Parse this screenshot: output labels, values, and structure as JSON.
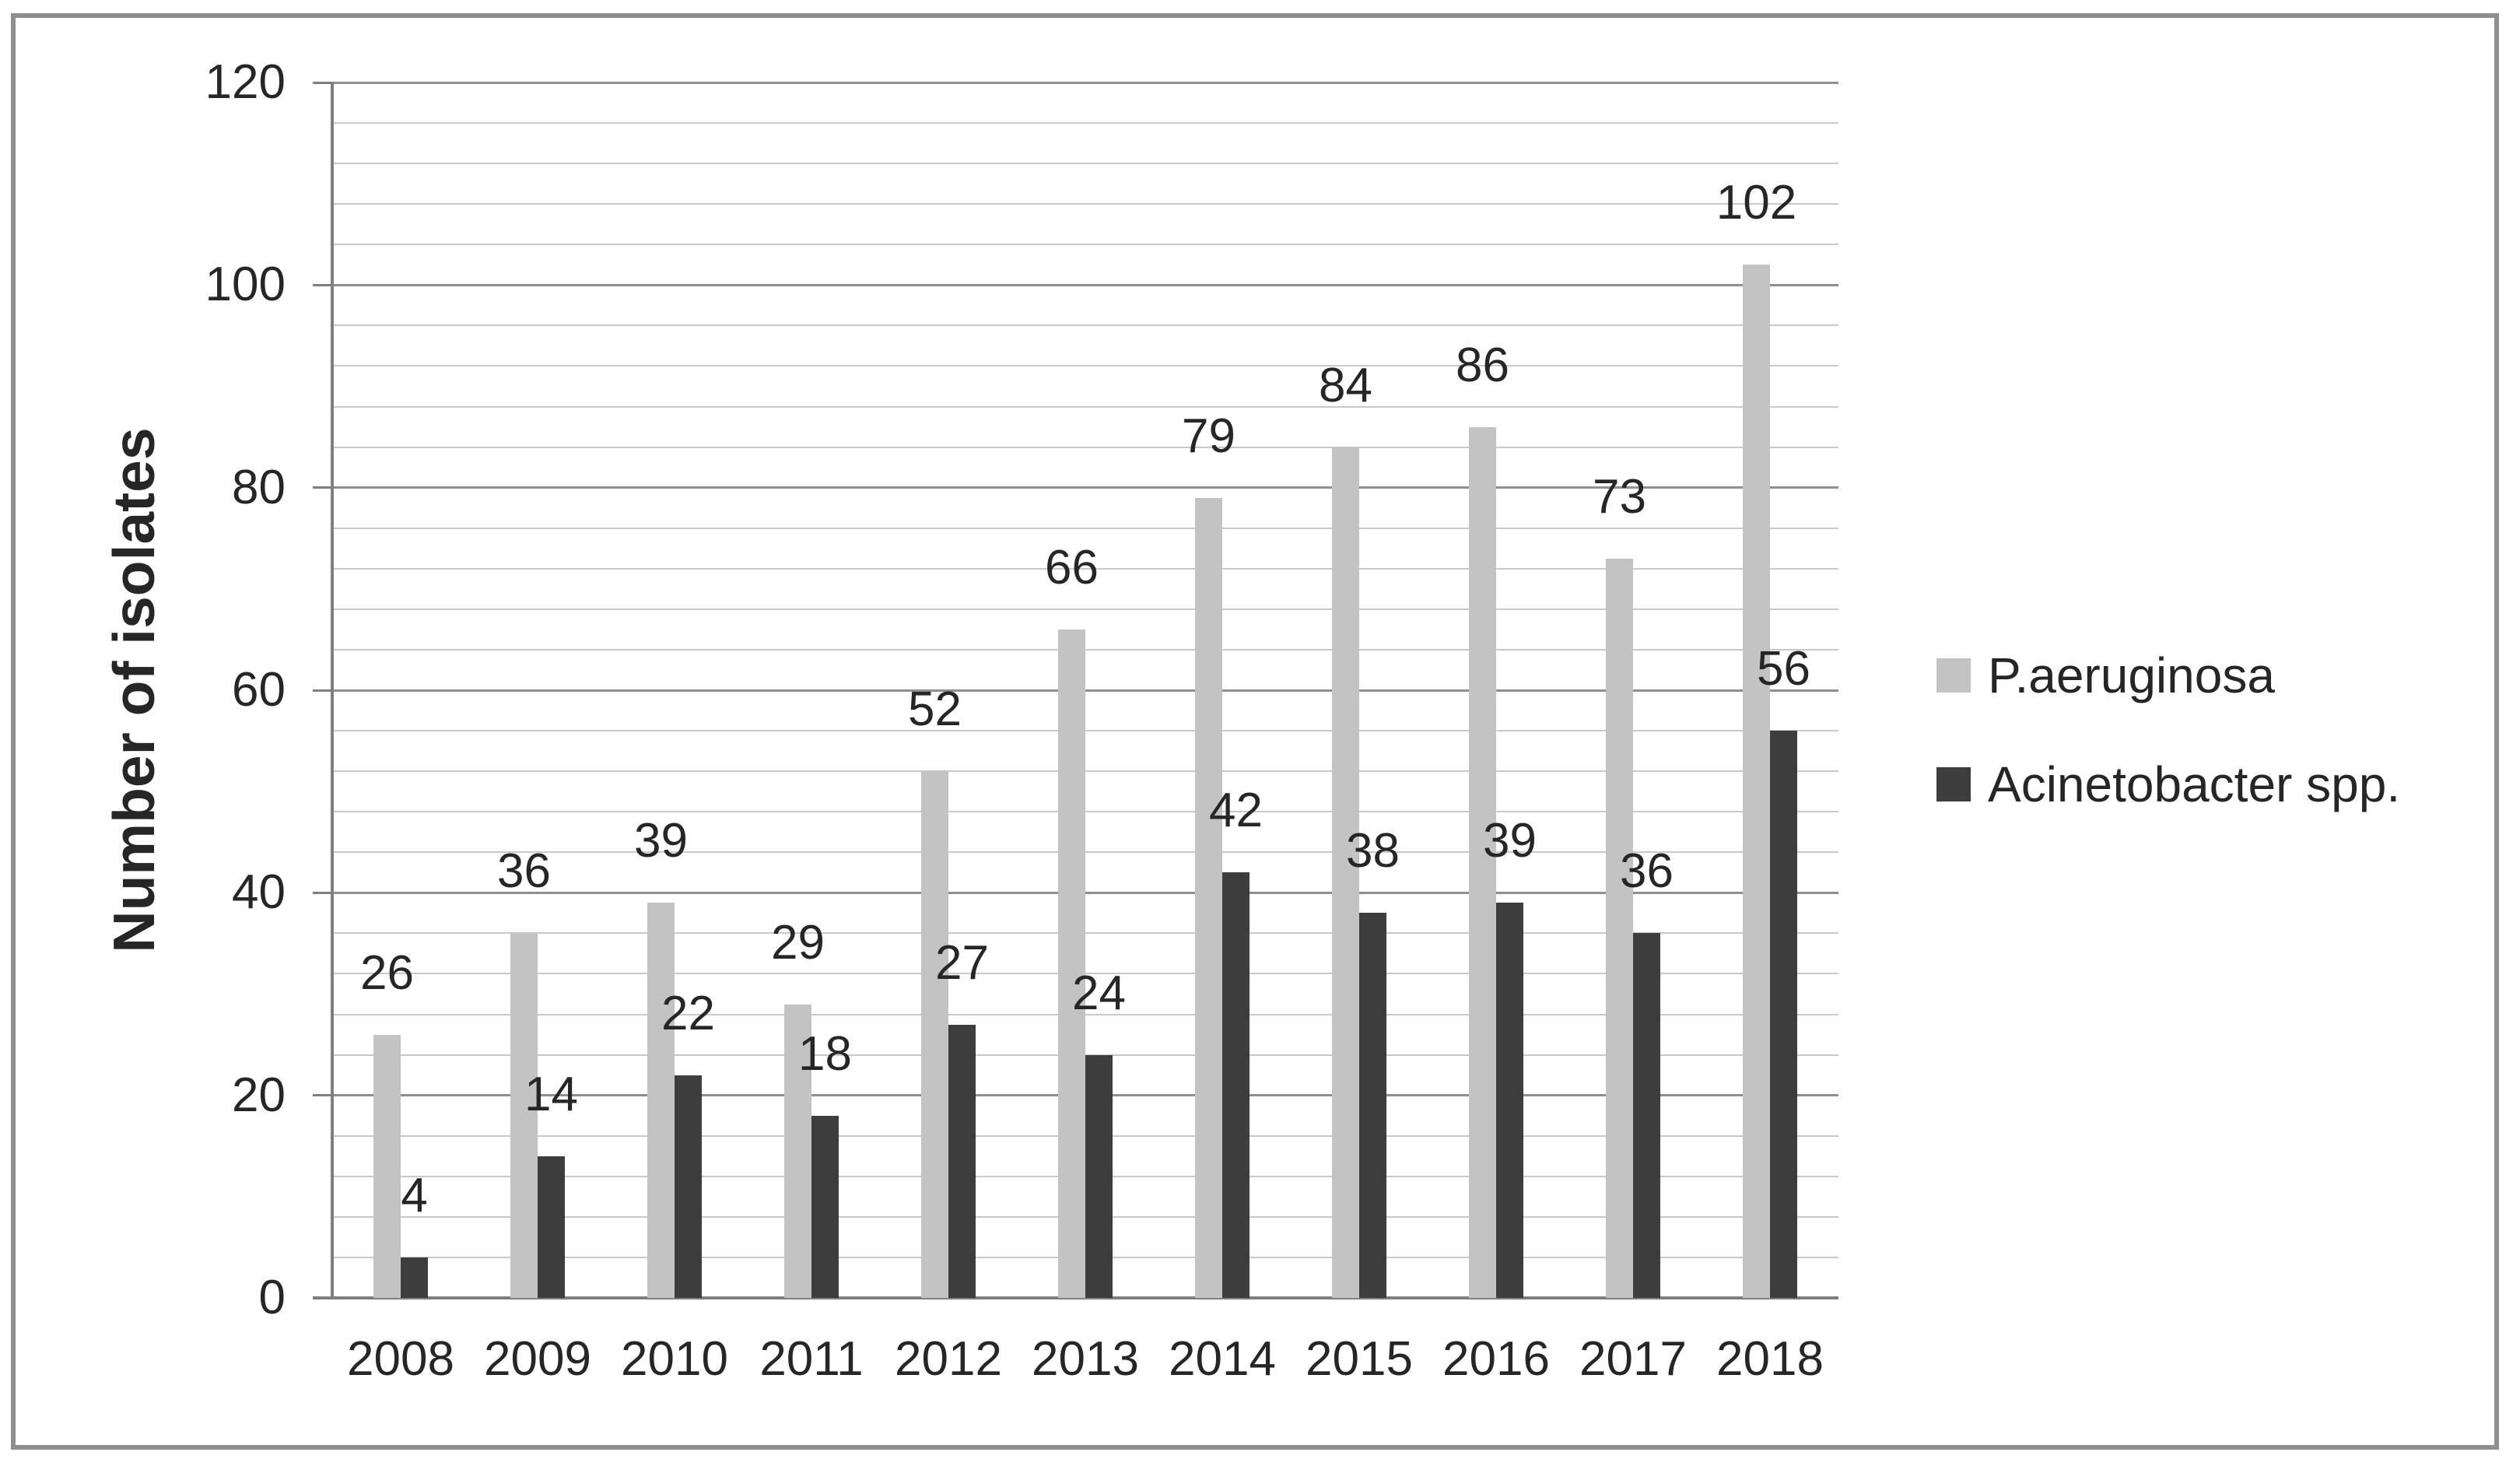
{
  "figure": {
    "background": "#ffffff",
    "border_color": "#8f8f8f"
  },
  "style": {
    "minor_grid_color": "#c9c9c9",
    "major_grid_color": "#8f8f8f",
    "axis_color": "#7f7f7f",
    "text_color": "#262626"
  },
  "chart_data": {
    "type": "bar",
    "title": "",
    "xlabel": "",
    "ylabel": "Number of isolates",
    "categories": [
      "2008",
      "2009",
      "2010",
      "2011",
      "2012",
      "2013",
      "2014",
      "2015",
      "2016",
      "2017",
      "2018"
    ],
    "series": [
      {
        "name": "P.aeruginosa",
        "color": "#c3c3c3",
        "values": [
          26,
          36,
          39,
          29,
          52,
          66,
          79,
          84,
          86,
          73,
          102
        ]
      },
      {
        "name": "Acinetobacter spp.",
        "color": "#3d3d3d",
        "values": [
          4,
          14,
          22,
          18,
          27,
          24,
          42,
          38,
          39,
          36,
          56
        ]
      }
    ],
    "ylim": [
      0,
      120
    ],
    "y_major_ticks": [
      0,
      20,
      40,
      60,
      80,
      100,
      120
    ],
    "y_minor_unit": 4,
    "y_major_unit": 20,
    "grid": "horizontal",
    "legend_position": "right",
    "data_labels": true
  }
}
